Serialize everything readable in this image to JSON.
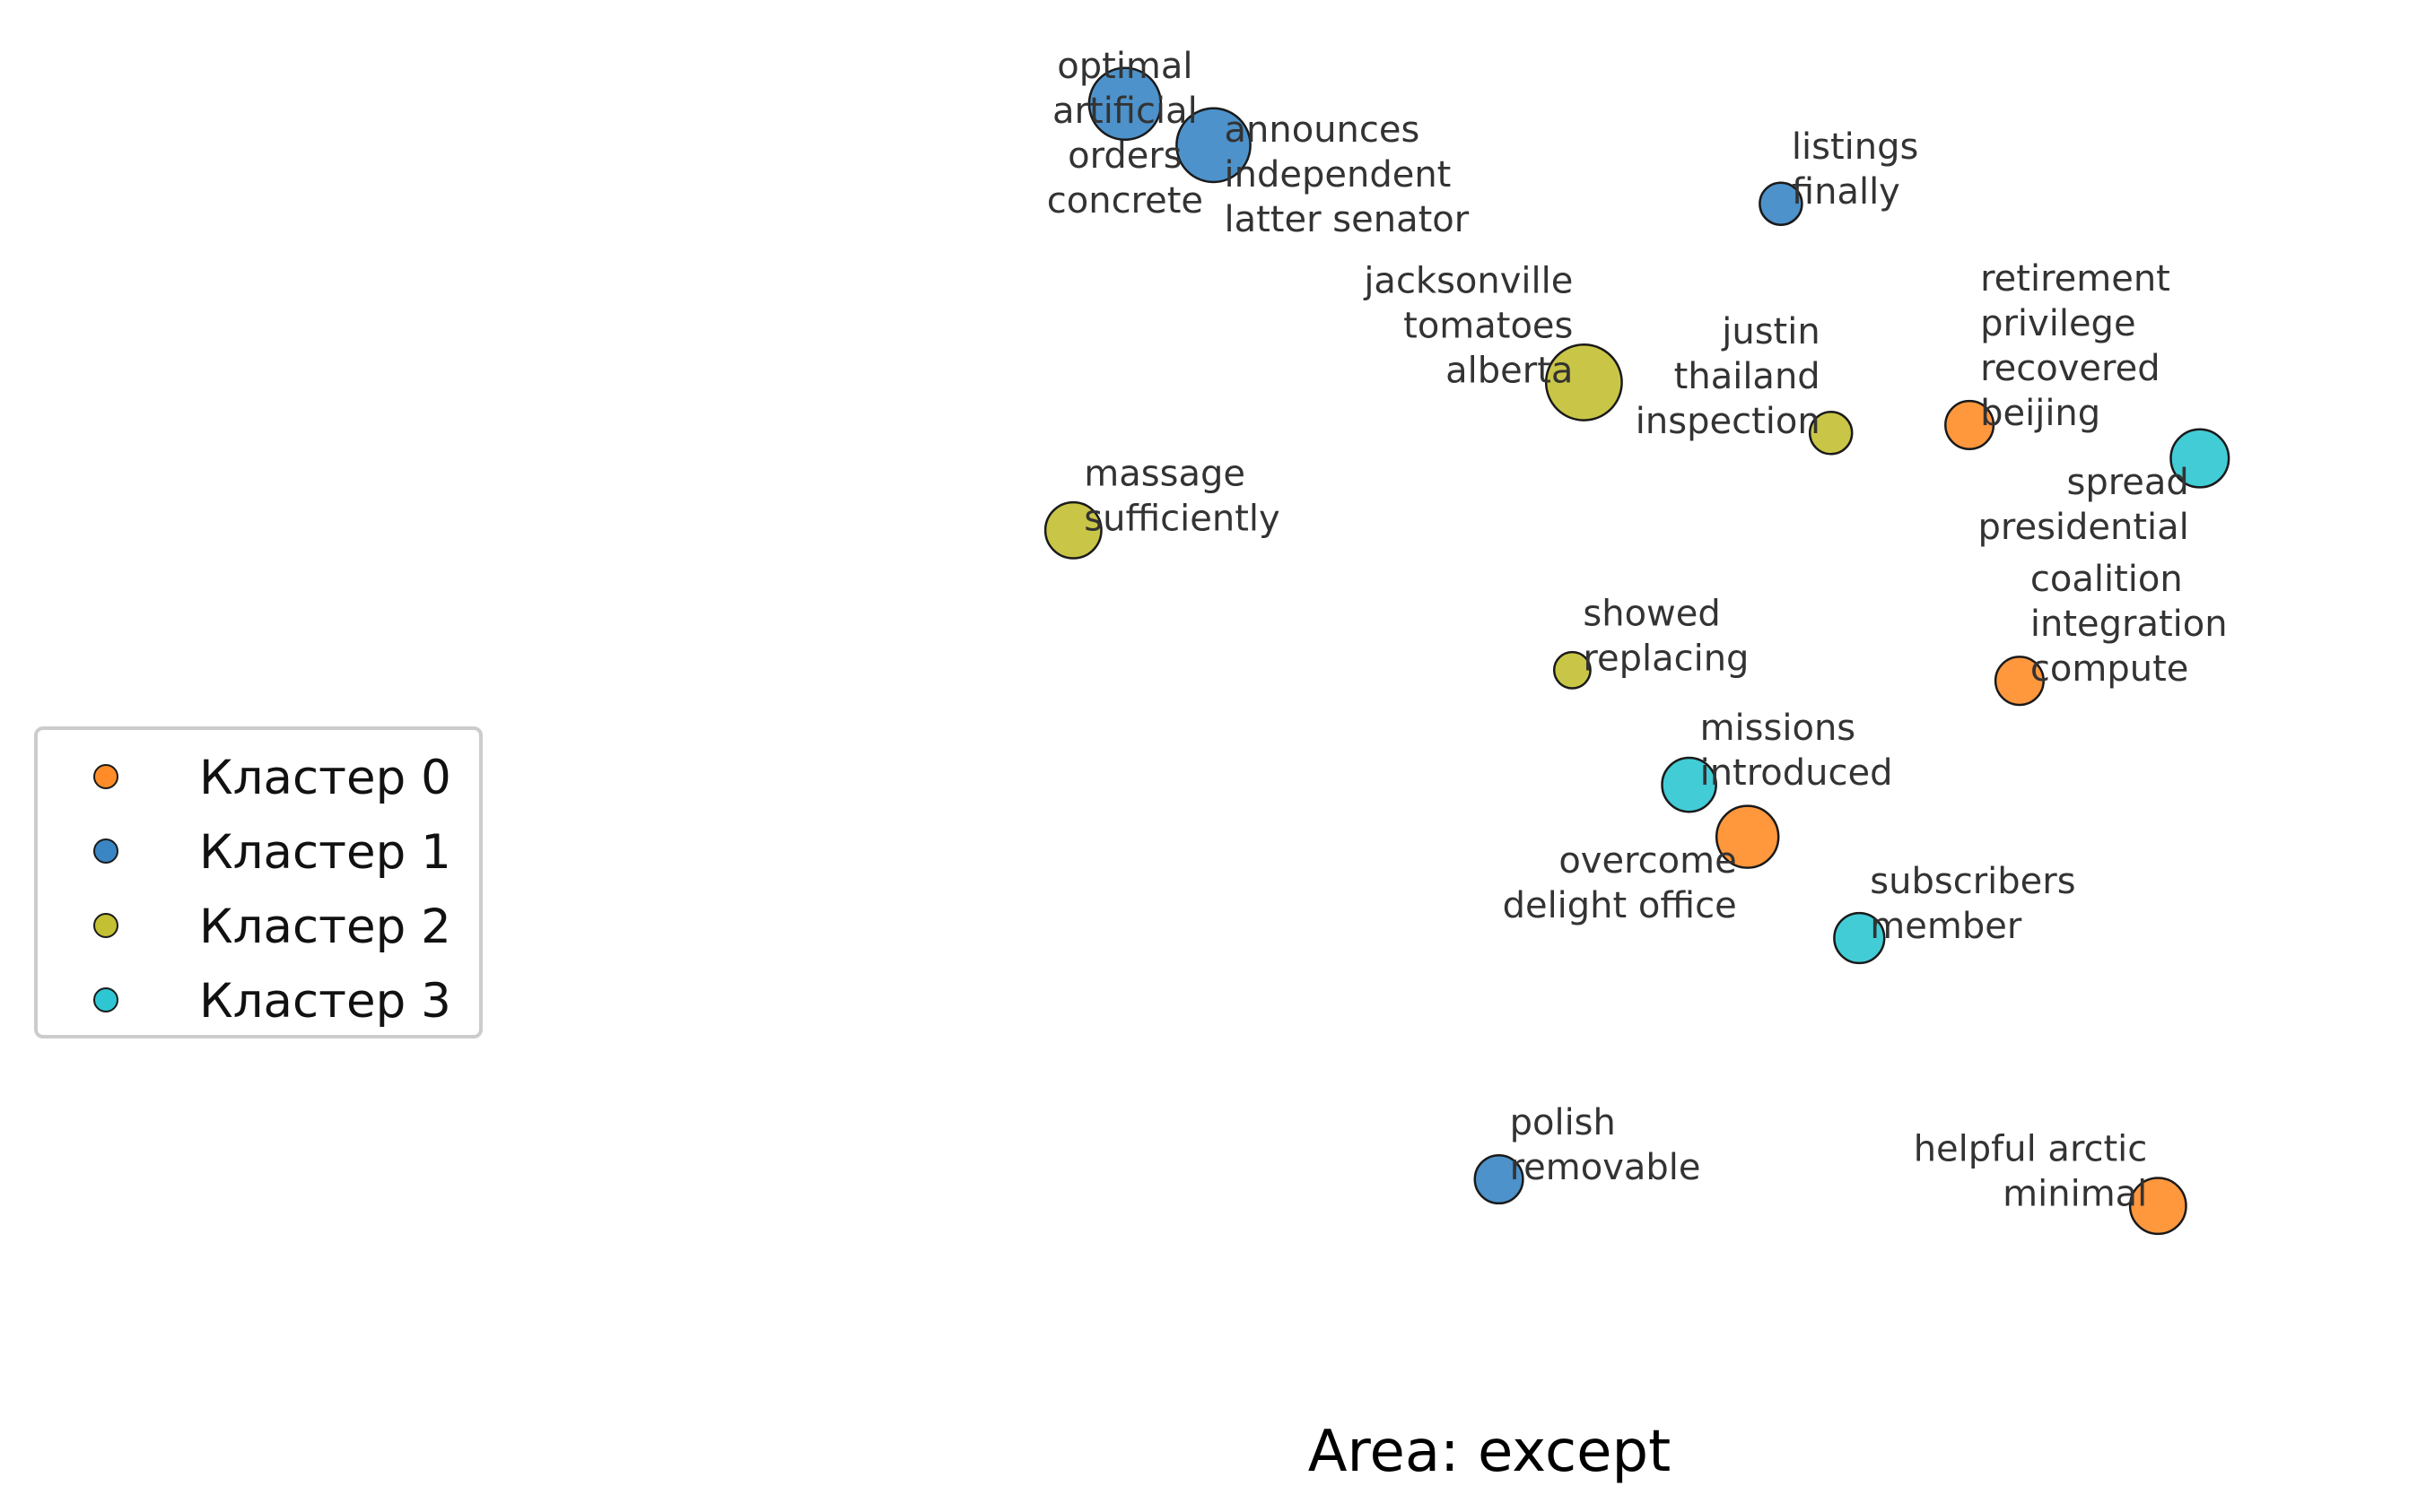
{
  "chart_data": {
    "type": "scatter",
    "title": "Area: except",
    "xlabel": "",
    "ylabel": "",
    "grid": false,
    "axes_visible": false,
    "legend_position": "center-left",
    "xlim": [
      0,
      100
    ],
    "ylim": [
      0,
      100
    ],
    "series": [
      {
        "name": "Кластер 0",
        "color": "#ff8c28"
      },
      {
        "name": "Кластер 1",
        "color": "#3a86c4"
      },
      {
        "name": "Кластер 2",
        "color": "#c3c033"
      },
      {
        "name": "Кластер 3",
        "color": "#2ec6d2"
      }
    ],
    "points": [
      {
        "cluster": 1,
        "x": 27.9,
        "y": 94.9,
        "size": 1.0,
        "label": [
          "optimal",
          "artificial",
          "orders",
          "concrete"
        ],
        "anchor": "middle",
        "dx": 0,
        "dy": 0
      },
      {
        "cluster": 1,
        "x": 33.2,
        "y": 91.8,
        "size": 1.05,
        "label": [
          "announces",
          "independent",
          "latter senator"
        ],
        "anchor": "start",
        "dx": 1,
        "dy": 0
      },
      {
        "cluster": 1,
        "x": 67.2,
        "y": 87.4,
        "size": 0.25,
        "label": [
          "listings",
          "finally"
        ],
        "anchor": "start",
        "dx": 1,
        "dy": 1
      },
      {
        "cluster": 2,
        "x": 55.4,
        "y": 74.0,
        "size": 1.1,
        "label": [
          "jacksonville",
          "tomatoes",
          "alberta"
        ],
        "anchor": "end",
        "dx": -1,
        "dy": 1
      },
      {
        "cluster": 2,
        "x": 70.2,
        "y": 70.2,
        "size": 0.25,
        "label": [
          "justin",
          "thailand",
          "inspection"
        ],
        "anchor": "end",
        "dx": -1,
        "dy": 1
      },
      {
        "cluster": 0,
        "x": 78.5,
        "y": 70.8,
        "size": 0.4,
        "label": [
          "retirement",
          "privilege",
          "recovered",
          "beijing"
        ],
        "anchor": "start",
        "dx": 1,
        "dy": 1
      },
      {
        "cluster": 3,
        "x": 92.3,
        "y": 68.3,
        "size": 0.65,
        "label": [
          "spread",
          "presidential"
        ],
        "anchor": "end",
        "dx": -1,
        "dy": -1
      },
      {
        "cluster": 2,
        "x": 24.8,
        "y": 62.9,
        "size": 0.6,
        "label": [
          "massage",
          "sufficiently"
        ],
        "anchor": "start",
        "dx": 1,
        "dy": 1
      },
      {
        "cluster": 2,
        "x": 54.7,
        "y": 52.4,
        "size": 0.1,
        "label": [
          "showed",
          "replacing"
        ],
        "anchor": "start",
        "dx": 1,
        "dy": 1
      },
      {
        "cluster": 0,
        "x": 81.5,
        "y": 51.6,
        "size": 0.4,
        "label": [
          "coalition",
          "integration",
          "compute"
        ],
        "anchor": "start",
        "dx": 1,
        "dy": 1
      },
      {
        "cluster": 3,
        "x": 61.7,
        "y": 43.8,
        "size": 0.55,
        "label": [
          "missions",
          "introduced"
        ],
        "anchor": "start",
        "dx": 1,
        "dy": 1
      },
      {
        "cluster": 0,
        "x": 65.2,
        "y": 39.9,
        "size": 0.75,
        "label": [
          "overcome",
          "delight office"
        ],
        "anchor": "end",
        "dx": -1,
        "dy": -1
      },
      {
        "cluster": 3,
        "x": 71.9,
        "y": 32.3,
        "size": 0.45,
        "label": [
          "subscribers",
          "member"
        ],
        "anchor": "start",
        "dx": 1,
        "dy": 1
      },
      {
        "cluster": 1,
        "x": 50.3,
        "y": 14.2,
        "size": 0.4,
        "label": [
          "polish",
          "removable"
        ],
        "anchor": "start",
        "dx": 1,
        "dy": 1
      },
      {
        "cluster": 0,
        "x": 89.8,
        "y": 12.2,
        "size": 0.6,
        "label": [
          "helpful arctic",
          "minimal"
        ],
        "anchor": "end",
        "dx": -1,
        "dy": 1
      }
    ]
  }
}
